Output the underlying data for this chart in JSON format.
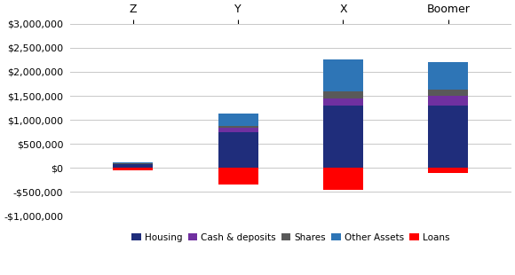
{
  "categories": [
    "Z",
    "Y",
    "X",
    "Boomer"
  ],
  "series": {
    "Housing": [
      75000,
      750000,
      1300000,
      1300000
    ],
    "Cash & deposits": [
      10000,
      80000,
      150000,
      200000
    ],
    "Shares": [
      8000,
      45000,
      150000,
      130000
    ],
    "Other Assets": [
      20000,
      265000,
      650000,
      570000
    ],
    "Loans": [
      -50000,
      -350000,
      -450000,
      -100000
    ]
  },
  "colors": {
    "Housing": "#1f2d7b",
    "Cash & deposits": "#7030a0",
    "Shares": "#595959",
    "Other Assets": "#2e75b6",
    "Loans": "#ff0000"
  },
  "ylim": [
    -1000000,
    3000000
  ],
  "yticks": [
    -1000000,
    -500000,
    0,
    500000,
    1000000,
    1500000,
    2000000,
    2500000,
    3000000
  ],
  "legend_order": [
    "Housing",
    "Cash & deposits",
    "Shares",
    "Other Assets",
    "Loans"
  ],
  "background_color": "#ffffff",
  "grid_color": "#c8c8c8"
}
